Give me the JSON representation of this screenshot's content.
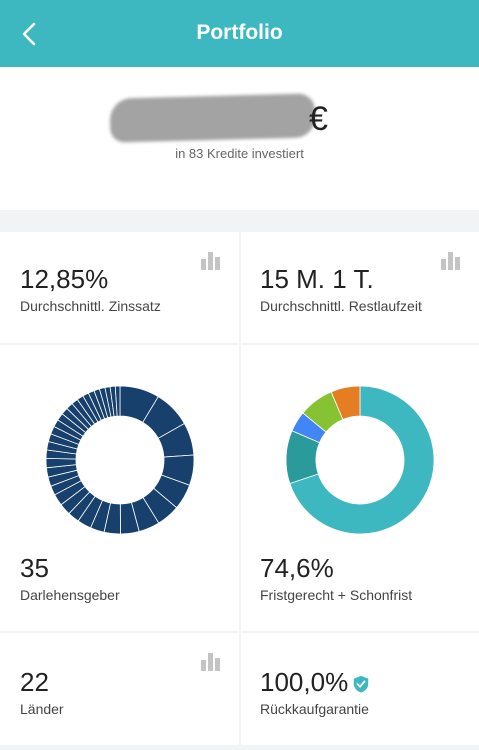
{
  "header": {
    "title": "Portfolio",
    "back_icon": "chevron-left-icon"
  },
  "summary": {
    "currency": "€",
    "invested_text": "in 83 Kredite investiert"
  },
  "stats": {
    "interest": {
      "value": "12,85%",
      "label": "Durchschnittl. Zinssatz"
    },
    "term": {
      "value": "15 M. 1 T.",
      "label": "Durchschnittl. Restlaufzeit"
    },
    "lenders": {
      "value": "35",
      "label": "Darlehensgeber"
    },
    "ontime": {
      "value": "74,6%",
      "label": "Fristgerecht + Schonfrist"
    },
    "countries": {
      "value": "22",
      "label": "Länder"
    },
    "guarantee": {
      "value": "100,0%",
      "label": "Rückkaufgarantie"
    }
  },
  "colors": {
    "accent": "#3db7c0",
    "donut_navy": "#17406d",
    "bar_icon": "#c4c4c4"
  },
  "chart_data": [
    {
      "type": "pie",
      "title": "",
      "values": [
        8.5,
        8,
        7,
        6.5,
        5.5,
        5,
        4.5,
        4,
        3.5,
        3,
        3,
        2.5,
        2.5,
        2.5,
        2,
        2,
        2,
        2,
        1.8,
        1.8,
        1.7,
        1.7,
        1.6,
        1.6,
        1.5,
        1.5,
        1.4,
        1.4,
        1.3,
        1.3,
        1.2,
        1.2,
        1.1,
        1.1,
        1.0
      ],
      "colors": [
        "#17406d"
      ]
    },
    {
      "type": "pie",
      "title": "",
      "values": [
        74.6,
        12.4,
        4.8,
        8.2,
        6.8
      ],
      "colors": [
        "#3db7c0",
        "#2a9a9a",
        "#4285f4",
        "#86c232",
        "#e57d22"
      ]
    }
  ]
}
